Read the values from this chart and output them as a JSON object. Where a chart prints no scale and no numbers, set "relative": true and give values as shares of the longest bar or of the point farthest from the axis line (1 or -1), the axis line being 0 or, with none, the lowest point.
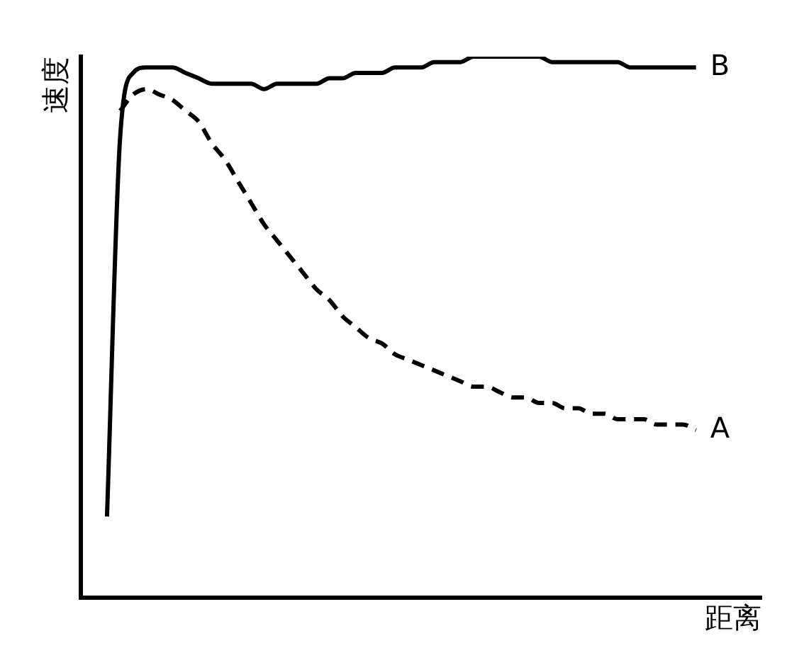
{
  "chart_data": {
    "type": "line",
    "xlabel": "距离",
    "ylabel": "速度",
    "relative": true,
    "legend": false,
    "categories": [
      null,
      null,
      null,
      null,
      null,
      null,
      null,
      null,
      null,
      null,
      null,
      null,
      null,
      null,
      null,
      null,
      null,
      null,
      null,
      null,
      null,
      null,
      null,
      null,
      null,
      null,
      null,
      null,
      null,
      null,
      null,
      null,
      null,
      null,
      null,
      null,
      null,
      null,
      null,
      null,
      null,
      null,
      null,
      null,
      null,
      null,
      null,
      null,
      null,
      null,
      null,
      null,
      null
    ],
    "series": [
      {
        "name": "B",
        "color": "#000000",
        "line_style": "solid",
        "values": [
          null,
          null,
          0.15,
          0.85,
          0.97,
          0.98,
          0.98,
          0.98,
          0.97,
          0.96,
          0.95,
          0.95,
          0.95,
          0.95,
          0.94,
          0.95,
          0.95,
          0.95,
          0.95,
          0.96,
          0.96,
          0.97,
          0.97,
          0.97,
          0.98,
          0.98,
          0.98,
          0.99,
          0.99,
          0.99,
          1.0,
          1,
          1,
          1,
          1.0,
          1.0,
          0.99,
          0.99,
          0.99,
          0.99,
          0.99,
          0.99,
          0.98,
          0.98,
          0.98,
          0.98,
          0.98,
          0.98,
          null,
          null,
          null,
          null,
          null
        ]
      },
      {
        "name": "A",
        "color": "#000000",
        "line_style": "dashed",
        "values": [
          null,
          null,
          null,
          0.9,
          0.93,
          0.94,
          0.93,
          0.92,
          0.9,
          0.88,
          0.84,
          0.81,
          0.77,
          0.73,
          0.69,
          0.66,
          0.63,
          0.6,
          0.57,
          0.55,
          0.52,
          0.5,
          0.48,
          0.47,
          0.45,
          0.44,
          0.43,
          0.42,
          0.41,
          0.4,
          0.39,
          0.39,
          0.38,
          0.37,
          0.37,
          0.36,
          0.36,
          0.35,
          0.35,
          0.34,
          0.34,
          0.33,
          0.33,
          0.33,
          0.32,
          0.32,
          0.32,
          0.31,
          null,
          null,
          null,
          null,
          null
        ]
      }
    ]
  }
}
